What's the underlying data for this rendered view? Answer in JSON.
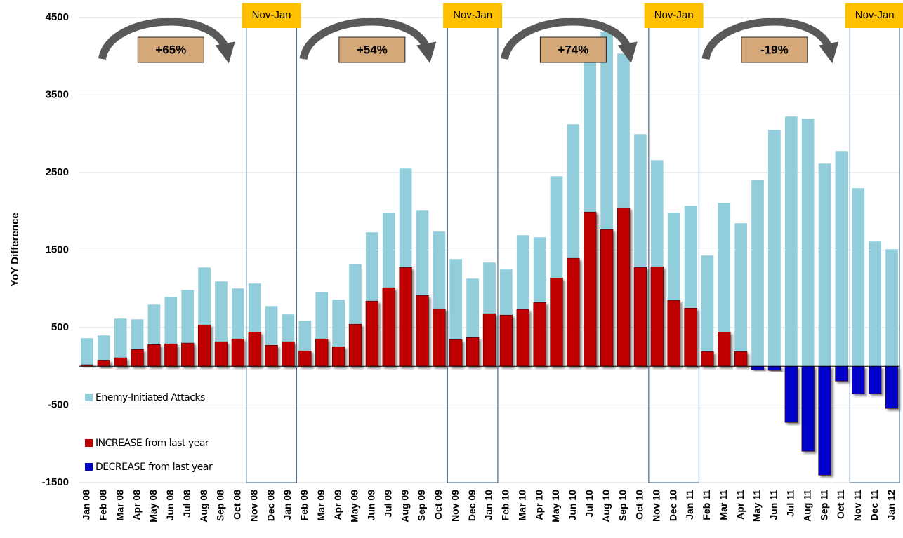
{
  "chart_data": {
    "type": "bar",
    "y_label": "YoY Difference",
    "categories": [
      "Jan 08",
      "Feb 08",
      "Mar 08",
      "Apr 08",
      "May 08",
      "Jun 08",
      "Jul 08",
      "Aug 08",
      "Sep 08",
      "Oct 08",
      "Nov 08",
      "Dec 08",
      "Jan 09",
      "Feb 09",
      "Mar 09",
      "Apr 09",
      "May 09",
      "Jun 09",
      "Jul 09",
      "Aug 09",
      "Sep 09",
      "Oct 09",
      "Nov 09",
      "Dec 09",
      "Jan 10",
      "Feb 10",
      "Mar 10",
      "Apr 10",
      "May 10",
      "Jun 10",
      "Jul 10",
      "Aug 10",
      "Sep 10",
      "Oct 10",
      "Nov 10",
      "Dec 10",
      "Jan 11",
      "Feb 11",
      "Mar 11",
      "Apr 11",
      "May 11",
      "Jun 11",
      "Jul 11",
      "Aug 11",
      "Sep 11",
      "Oct 11",
      "Nov 11",
      "Dec 11",
      "Jan 12"
    ],
    "series": [
      {
        "name": "Enemy-Initiated Attacks",
        "color": "#92cddc",
        "values": [
          362,
          398,
          615,
          606,
          796,
          896,
          986,
          1276,
          1095,
          1005,
          1068,
          778,
          670,
          588,
          959,
          860,
          1321,
          1729,
          1982,
          2552,
          2009,
          1738,
          1385,
          1131,
          1339,
          1249,
          1692,
          1665,
          2452,
          3122,
          3950,
          4317,
          4036,
          2995,
          2660,
          1982,
          2072,
          1430,
          2109,
          1846,
          2407,
          3050,
          3222,
          3195,
          2615,
          2778,
          2299,
          1611,
          1511
        ]
      },
      {
        "name": "INCREASE from last year",
        "color": "#c00000",
        "values": [
          20,
          80,
          110,
          217,
          280,
          290,
          300,
          534,
          317,
          353,
          443,
          271,
          317,
          199,
          353,
          253,
          543,
          842,
          1014,
          1276,
          914,
          742,
          344,
          371,
          679,
          661,
          733,
          824,
          1140,
          1394,
          1991,
          1765,
          2045,
          1276,
          1285,
          851,
          751,
          190,
          443,
          190,
          null,
          null,
          null,
          null,
          null,
          null,
          null,
          null,
          null
        ]
      },
      {
        "name": "DECREASE from last year",
        "color": "#0000cc",
        "values": [
          null,
          null,
          null,
          null,
          null,
          null,
          null,
          null,
          null,
          null,
          null,
          null,
          null,
          null,
          null,
          null,
          null,
          null,
          null,
          null,
          null,
          null,
          null,
          null,
          null,
          null,
          null,
          null,
          null,
          null,
          null,
          null,
          null,
          null,
          null,
          null,
          null,
          null,
          null,
          null,
          -45,
          -54,
          -724,
          -1095,
          -1403,
          -190,
          -353,
          -353,
          -543
        ]
      }
    ],
    "ylim": [
      -1500,
      4500
    ],
    "yticks": [
      -1500,
      -500,
      500,
      1500,
      2500,
      3500,
      4500
    ],
    "grid": true,
    "highlights": [
      "Nov-Jan",
      "Nov-Jan",
      "Nov-Jan",
      "Nov-Jan"
    ],
    "annotations": [
      "+65%",
      "+54%",
      "+74%",
      "-19%"
    ]
  }
}
